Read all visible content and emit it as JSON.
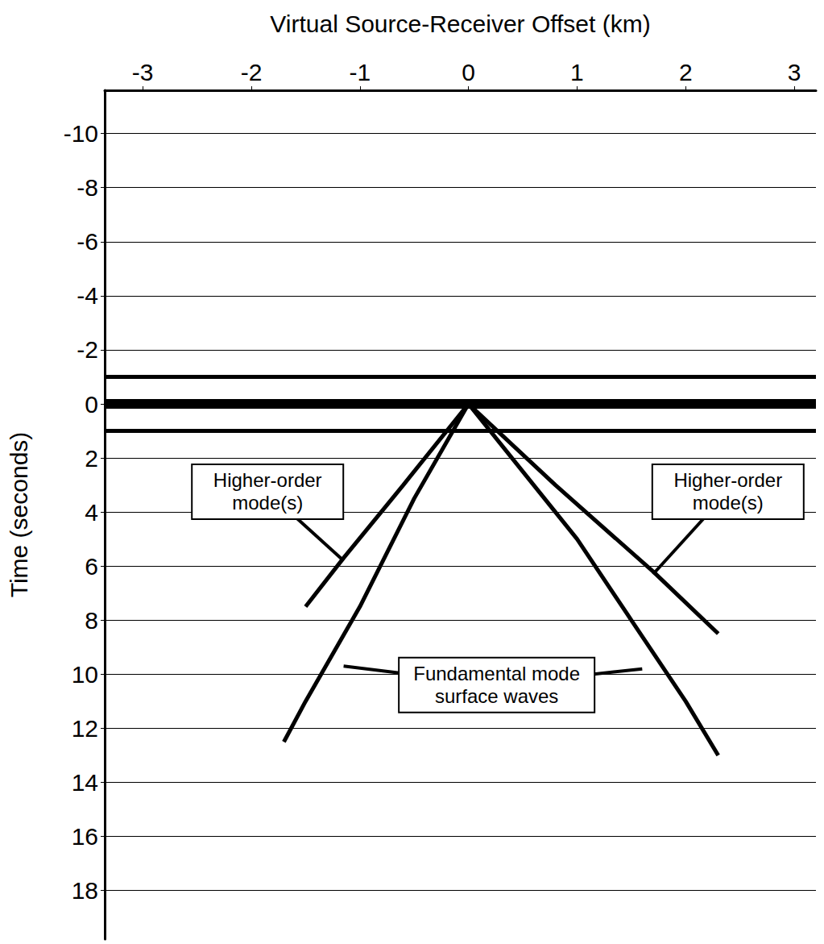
{
  "chart_data": {
    "type": "line",
    "x_label": "Virtual Source-Receiver Offset (km)",
    "y_label": "Time (seconds)",
    "xlim": [
      -3.35,
      3.2
    ],
    "xticks": [
      -3,
      -2,
      -1,
      0,
      1,
      2,
      3
    ],
    "ylim": [
      -11.6,
      19.8
    ],
    "yticks": [
      -10,
      -8,
      -6,
      -4,
      -2,
      0,
      2,
      4,
      6,
      8,
      10,
      12,
      14,
      16,
      18
    ],
    "grid": "y",
    "series": [
      {
        "x": [
          -3.35,
          3.2
        ],
        "values": [
          0,
          0
        ],
        "color": "#000000",
        "line_style": "thick"
      },
      {
        "x": [
          -3.35,
          3.2
        ],
        "values": [
          -1,
          -1
        ],
        "color": "#000000",
        "line_style": "solid"
      },
      {
        "x": [
          -3.35,
          3.2
        ],
        "values": [
          1,
          1
        ],
        "color": "#000000",
        "line_style": "solid"
      },
      {
        "x": [
          0,
          0.5,
          1,
          1.5,
          2,
          2.3
        ],
        "values": [
          0,
          2.5,
          5,
          8,
          11,
          13
        ],
        "color": "#000000",
        "line_style": "solid"
      },
      {
        "x": [
          0,
          -0.5,
          -1,
          -1.5,
          -1.7
        ],
        "values": [
          0,
          3.5,
          7.5,
          11,
          12.5
        ],
        "color": "#000000",
        "line_style": "solid"
      },
      {
        "x": [
          0,
          0.8,
          1.7,
          2.3
        ],
        "values": [
          0,
          3,
          6.2,
          8.5
        ],
        "color": "#000000",
        "line_style": "solid"
      },
      {
        "x": [
          0,
          -0.6,
          -1.15,
          -1.5
        ],
        "values": [
          0,
          3,
          5.7,
          7.5
        ],
        "color": "#000000",
        "line_style": "solid"
      }
    ],
    "annotations": [
      {
        "text": "Higher-order mode(s)",
        "x": -1.85,
        "y": 3.25,
        "points": [
          [
            -1.15,
            5.8
          ]
        ]
      },
      {
        "text": "Higher-order mode(s)",
        "x": 2.39,
        "y": 3.25,
        "points": [
          [
            1.7,
            6.3
          ]
        ]
      },
      {
        "text": "Fundamental mode surface waves",
        "x": 0.26,
        "y": 10.4,
        "points": [
          [
            -1.15,
            9.7
          ],
          [
            1.6,
            9.8
          ]
        ]
      }
    ]
  }
}
